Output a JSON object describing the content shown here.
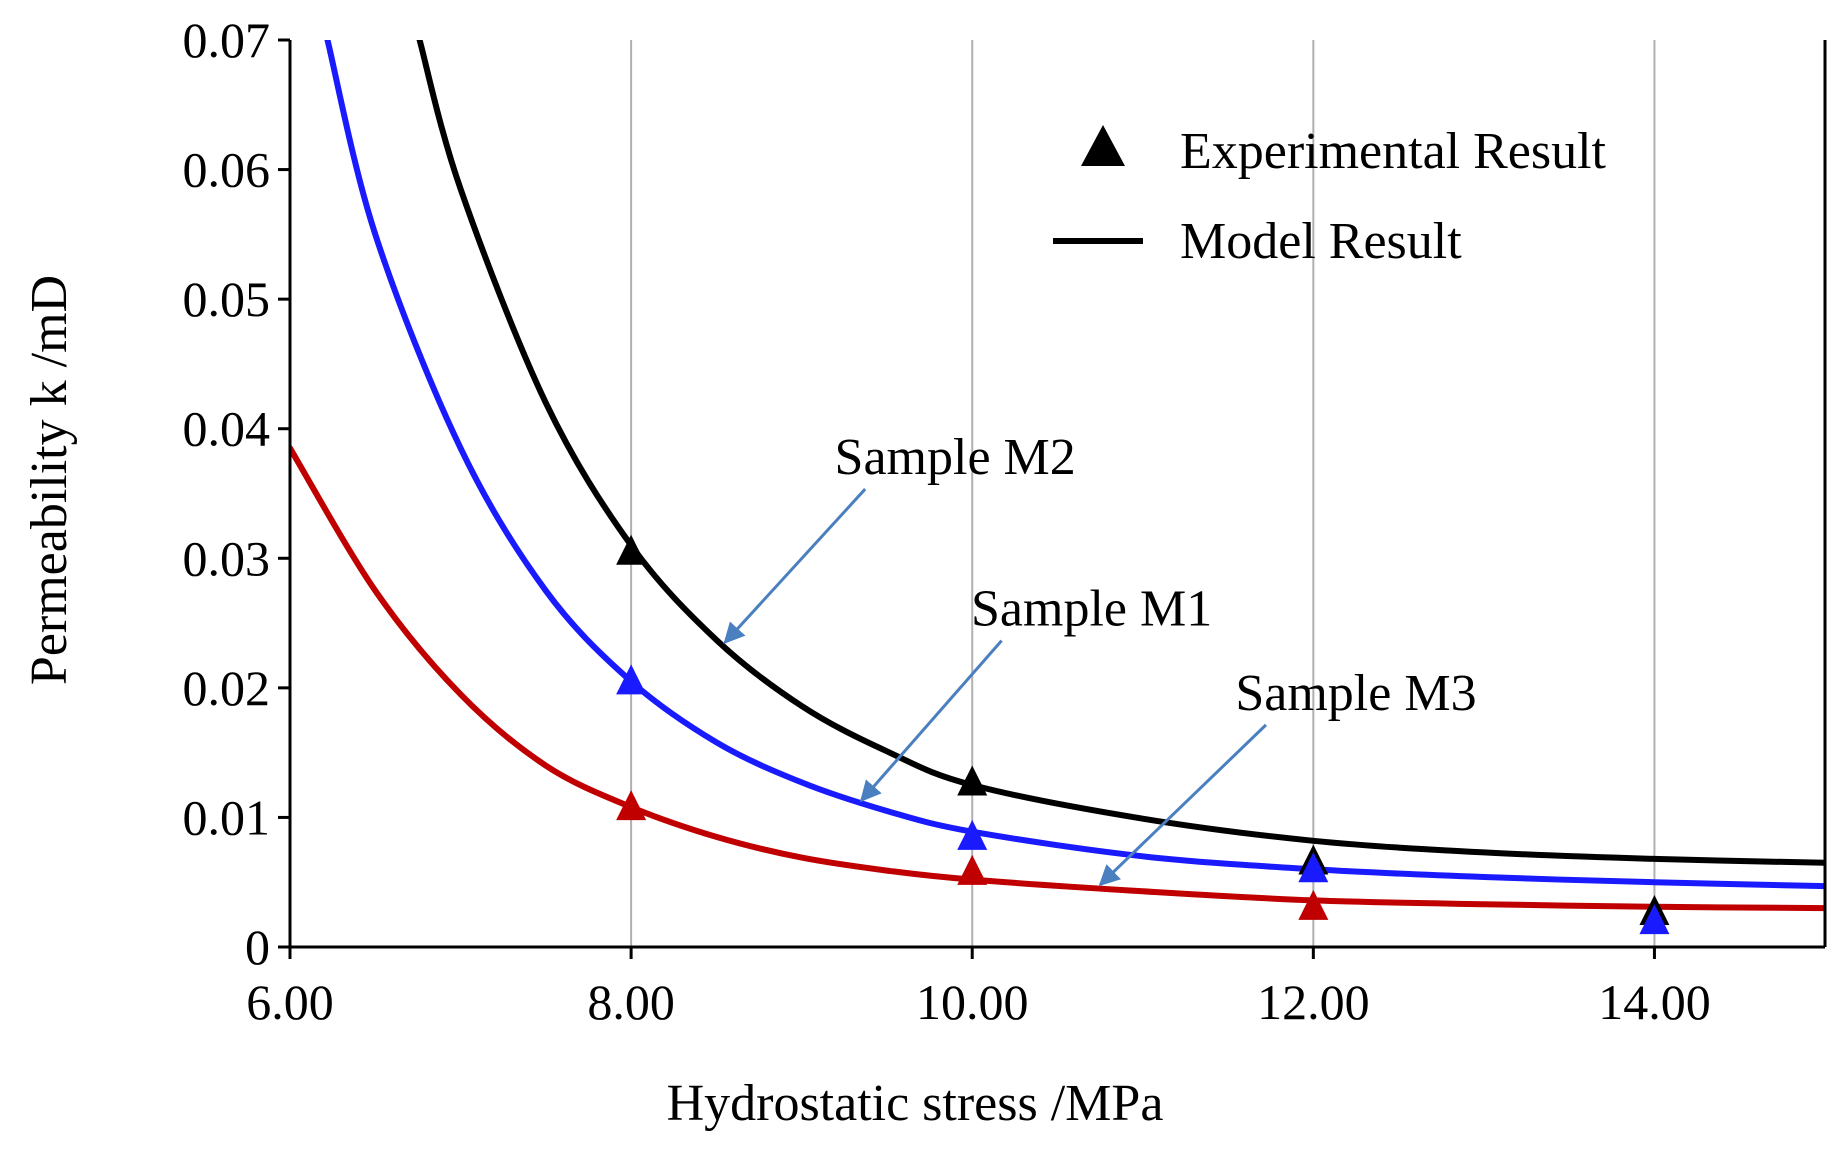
{
  "chart_data": {
    "type": "line",
    "title": "",
    "xlabel": "Hydrostatic stress /MPa",
    "ylabel": "Permeability k /mD",
    "xlim": [
      6,
      15
    ],
    "ylim": [
      0,
      0.07
    ],
    "x_ticks": [
      6,
      8,
      10,
      12,
      14
    ],
    "x_tick_labels": [
      "6.00",
      "8.00",
      "10.00",
      "12.00",
      "14.00"
    ],
    "y_ticks": [
      0,
      0.01,
      0.02,
      0.03,
      0.04,
      0.05,
      0.06,
      0.07
    ],
    "y_tick_labels": [
      "0",
      "0.01",
      "0.02",
      "0.03",
      "0.04",
      "0.05",
      "0.06",
      "0.07"
    ],
    "grid": "vertical lines at x ticks",
    "legend": {
      "position": "top-right",
      "entries": [
        {
          "label": "Experimental Result",
          "marker": "triangle"
        },
        {
          "label": "Model Result",
          "marker": "line"
        }
      ]
    },
    "series": [
      {
        "name": "Sample M2",
        "color": "#000000",
        "experimental": {
          "x": [
            8,
            10,
            12,
            14
          ],
          "y": [
            0.0305,
            0.0127,
            0.0066,
            0.0027
          ]
        },
        "model": {
          "x": [
            6.76,
            7.0,
            7.5,
            8.0,
            8.5,
            9.0,
            9.5,
            10.0,
            11.0,
            12.0,
            13.0,
            14.0,
            15.0
          ],
          "y": [
            0.07,
            0.0585,
            0.042,
            0.031,
            0.0237,
            0.0186,
            0.0151,
            0.0125,
            0.0099,
            0.0082,
            0.0073,
            0.0068,
            0.0065
          ]
        }
      },
      {
        "name": "Sample M1",
        "color": "#1a1aff",
        "experimental": {
          "x": [
            8,
            10,
            12,
            14
          ],
          "y": [
            0.0205,
            0.0085,
            0.006,
            0.002
          ]
        },
        "model": {
          "x": [
            6.22,
            6.5,
            7.0,
            7.5,
            8.0,
            8.5,
            9.0,
            9.5,
            10.0,
            11.0,
            12.0,
            13.0,
            14.0,
            15.0
          ],
          "y": [
            0.07,
            0.055,
            0.0385,
            0.0275,
            0.0205,
            0.0158,
            0.0127,
            0.0105,
            0.0089,
            0.007,
            0.006,
            0.0054,
            0.005,
            0.0047
          ]
        }
      },
      {
        "name": "Sample M3",
        "color": "#c00000",
        "experimental": {
          "x": [
            8,
            10,
            12
          ],
          "y": [
            0.0108,
            0.0058,
            0.0031
          ]
        },
        "model": {
          "x": [
            6.0,
            6.5,
            7.0,
            7.5,
            8.0,
            8.5,
            9.0,
            9.5,
            10.0,
            11.0,
            12.0,
            13.0,
            14.0,
            15.0
          ],
          "y": [
            0.0385,
            0.0275,
            0.0195,
            0.014,
            0.0108,
            0.0085,
            0.0069,
            0.0059,
            0.0052,
            0.0043,
            0.0036,
            0.0033,
            0.0031,
            0.003
          ]
        }
      }
    ],
    "annotations": [
      {
        "text": "Sample M2",
        "target": {
          "x": 8.55,
          "y": 0.0235
        },
        "label_at": {
          "x": 9.9,
          "y": 0.0365
        },
        "arrow_color": "#4a7fc0"
      },
      {
        "text": "Sample M1",
        "target": {
          "x": 9.35,
          "y": 0.0113
        },
        "label_at": {
          "x": 10.7,
          "y": 0.0248
        },
        "arrow_color": "#4a7fc0"
      },
      {
        "text": "Sample M3",
        "target": {
          "x": 10.75,
          "y": 0.0048
        },
        "label_at": {
          "x": 12.25,
          "y": 0.0183
        },
        "arrow_color": "#4a7fc0"
      }
    ]
  }
}
